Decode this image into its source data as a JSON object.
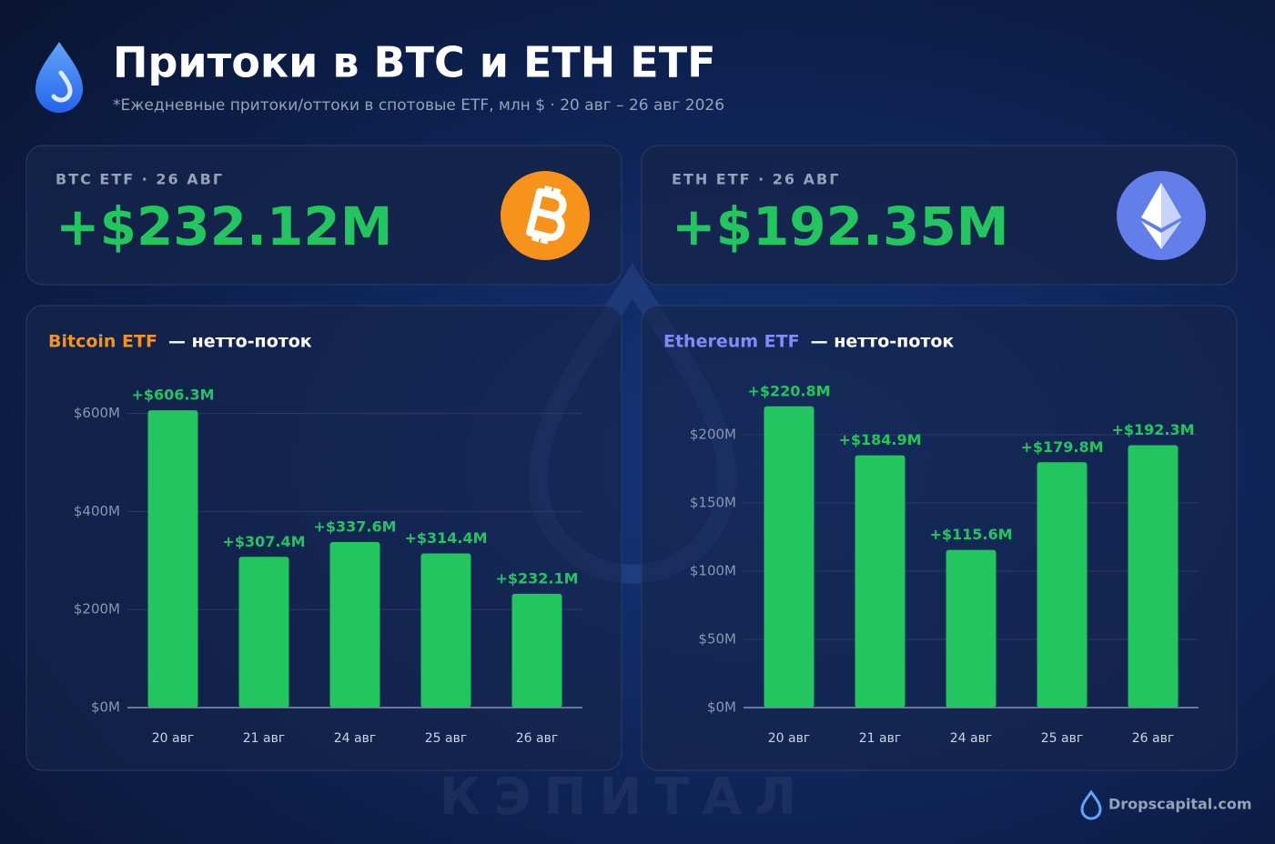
{
  "header": {
    "title": "Притоки в BTC и ETH ETF",
    "subtitle": "*Ежедневные притоки/оттоки в спотовые ETF, млн $ · 20 авг – 26 авг 2026"
  },
  "cards": [
    {
      "label": "BTC ETF · 26 АВГ",
      "value": "+$232.12M"
    },
    {
      "label": "ETH ETF · 26 АВГ",
      "value": "+$192.35M"
    }
  ],
  "chart_data": [
    {
      "type": "bar",
      "title": "Bitcoin ETF",
      "subtitle": "— нетто-поток",
      "title_color": "#f7931a",
      "categories": [
        "20 авг",
        "21 авг",
        "24 авг",
        "25 авг",
        "26 авг"
      ],
      "values": [
        606.3,
        307.4,
        337.6,
        314.4,
        232.1
      ],
      "value_labels": [
        "+$606.3M",
        "+$307.4M",
        "+$337.6M",
        "+$314.4M",
        "+$232.1M"
      ],
      "color": "#22c55e",
      "ylim": [
        0,
        640
      ],
      "yticks": [
        {
          "value": 0,
          "label": "$0M"
        },
        {
          "value": 200,
          "label": "$200M"
        },
        {
          "value": 400,
          "label": "$400M"
        },
        {
          "value": 600,
          "label": "$600M"
        }
      ],
      "grid": true
    },
    {
      "type": "bar",
      "title": "Ethereum ETF",
      "subtitle": "— нетто-поток",
      "title_color": "#818cf8",
      "categories": [
        "20 авг",
        "21 авг",
        "24 авг",
        "25 авг",
        "26 авг"
      ],
      "values": [
        220.8,
        184.9,
        115.6,
        179.8,
        192.3
      ],
      "value_labels": [
        "+$220.8M",
        "+$184.9M",
        "+$115.6M",
        "+$179.8M",
        "+$192.3M"
      ],
      "color": "#22c55e",
      "ylim": [
        0,
        230
      ],
      "yticks": [
        {
          "value": 0,
          "label": "$0M"
        },
        {
          "value": 50,
          "label": "$50M"
        },
        {
          "value": 100,
          "label": "$100M"
        },
        {
          "value": 150,
          "label": "$150M"
        },
        {
          "value": 200,
          "label": "$200M"
        }
      ],
      "grid": true
    }
  ],
  "watermark": "КЭПИТАЛ",
  "footer": "Dropscapital.com"
}
